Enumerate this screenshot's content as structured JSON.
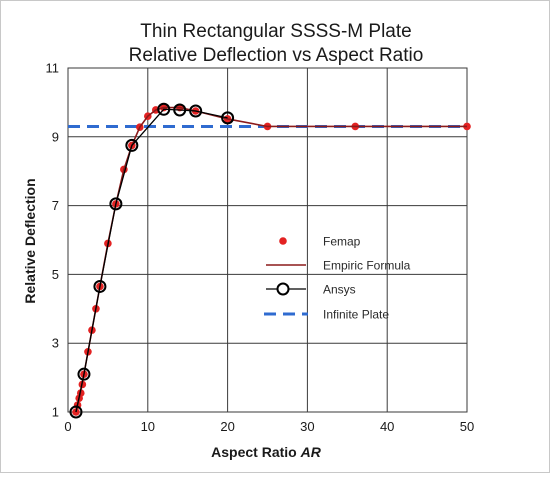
{
  "chart_data": {
    "type": "line",
    "title": [
      "Thin Rectangular SSSS-M Plate",
      "Relative Deflection vs Aspect Ratio"
    ],
    "xlabel": "Aspect Ratio ",
    "xlabel_italic": "AR",
    "ylabel": "Relative Deflection",
    "xlim": [
      0,
      50
    ],
    "ylim": [
      1,
      11
    ],
    "x_ticks": [
      0,
      10,
      20,
      30,
      40,
      50
    ],
    "y_ticks": [
      1,
      3,
      5,
      7,
      9,
      11
    ],
    "grid": true,
    "legend_position": "center-right",
    "series": [
      {
        "name": "Femap",
        "style": "marker",
        "color": "#e32222",
        "x": [
          1,
          1.2,
          1.4,
          1.6,
          1.8,
          2,
          2.5,
          3,
          3.5,
          4,
          5,
          6,
          7,
          8,
          9,
          10,
          11,
          12,
          14,
          16,
          20,
          25,
          36,
          50
        ],
        "y": [
          1.0,
          1.2,
          1.4,
          1.55,
          1.8,
          2.1,
          2.75,
          3.38,
          4.0,
          4.65,
          5.9,
          7.05,
          8.05,
          8.75,
          9.28,
          9.6,
          9.78,
          9.85,
          9.85,
          9.75,
          9.52,
          9.3,
          9.3,
          9.3
        ]
      },
      {
        "name": "Empiric Formula",
        "style": "line",
        "color": "#8b1a1a",
        "x": [
          1,
          1.5,
          2,
          3,
          4,
          5,
          6,
          7,
          8,
          9,
          10,
          11,
          12,
          14,
          16,
          20,
          25,
          36,
          50
        ],
        "y": [
          1.0,
          1.5,
          2.1,
          3.38,
          4.65,
          5.9,
          7.05,
          8.05,
          8.75,
          9.28,
          9.6,
          9.78,
          9.85,
          9.85,
          9.75,
          9.52,
          9.3,
          9.3,
          9.3
        ]
      },
      {
        "name": "Ansys",
        "style": "line-marker-open",
        "color": "#000000",
        "x": [
          1,
          2,
          4,
          6,
          8,
          12,
          14,
          16,
          20
        ],
        "y": [
          1.0,
          2.1,
          4.65,
          7.05,
          8.75,
          9.8,
          9.78,
          9.75,
          9.55
        ]
      },
      {
        "name": "Infinite Plate",
        "style": "dashed",
        "color": "#2f6bd0",
        "x": [
          0,
          50
        ],
        "y": [
          9.3,
          9.3
        ]
      }
    ]
  }
}
